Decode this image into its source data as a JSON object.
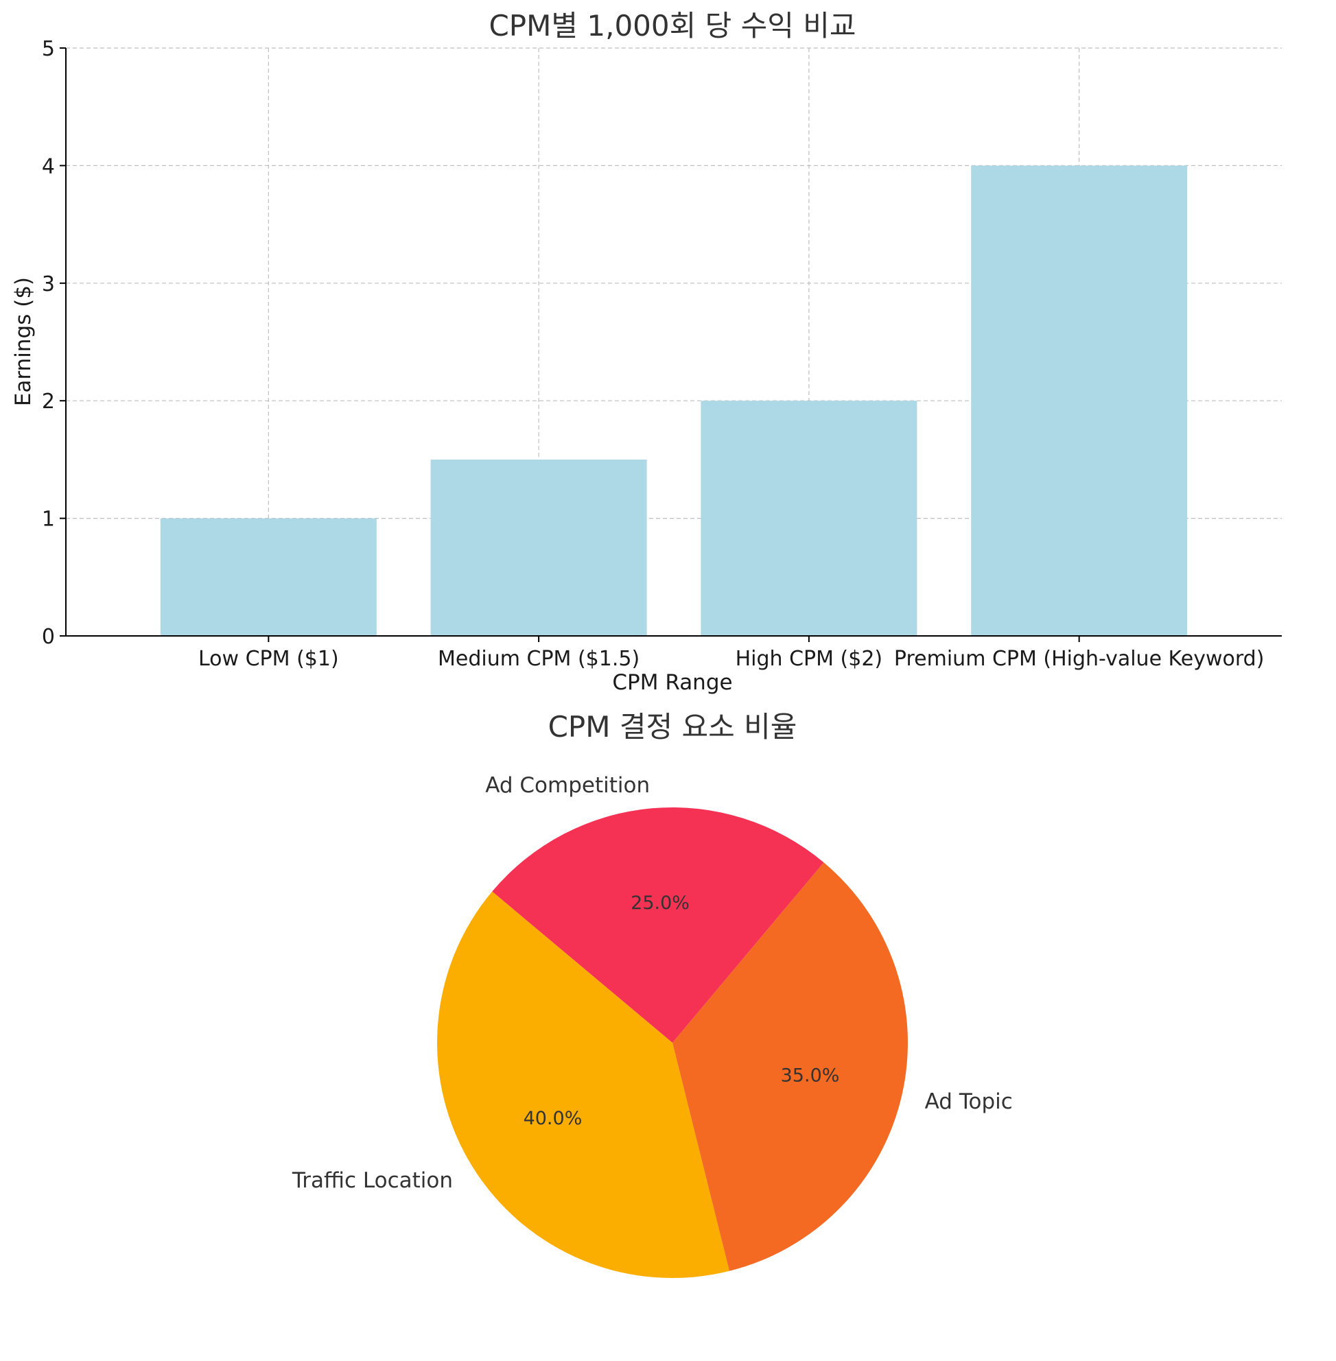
{
  "chart_data": [
    {
      "type": "bar",
      "title": "CPM별 1,000회 당 수익 비교",
      "xlabel": "CPM Range",
      "ylabel": "Earnings ($)",
      "categories": [
        "Low CPM ($1)",
        "Medium CPM ($1.5)",
        "High CPM ($2)",
        "Premium CPM (High-value Keyword)"
      ],
      "values": [
        1,
        1.5,
        2,
        4
      ],
      "ylim": [
        0,
        5
      ],
      "yticks": [
        0,
        1,
        2,
        3,
        4,
        5
      ],
      "bar_color": "#add8e6",
      "grid": true
    },
    {
      "type": "pie",
      "title": "CPM 결정 요소 비율",
      "labels": [
        "Traffic Location",
        "Ad Topic",
        "Ad Competition"
      ],
      "values": [
        40,
        35,
        25
      ],
      "percent_labels": [
        "40.0%",
        "35.0%",
        "25.0%"
      ],
      "colors": [
        "#fcae00",
        "#f46a22",
        "#f53254"
      ]
    }
  ]
}
